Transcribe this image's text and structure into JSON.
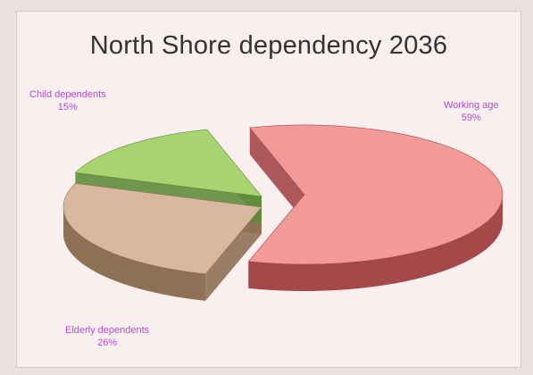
{
  "chart_data": {
    "type": "pie",
    "title": "North Shore dependency 2036",
    "slices": [
      {
        "name": "Working age",
        "value": 59,
        "label": "59%",
        "color": "#f29a9a",
        "side": "#a4484a"
      },
      {
        "name": "Elderly dependents",
        "value": 26,
        "label": "26%",
        "color": "#d9b99d",
        "side": "#8e7054"
      },
      {
        "name": "Child dependents",
        "value": 15,
        "label": "15%",
        "color": "#a7d370",
        "side": "#5e8c3b"
      }
    ]
  }
}
